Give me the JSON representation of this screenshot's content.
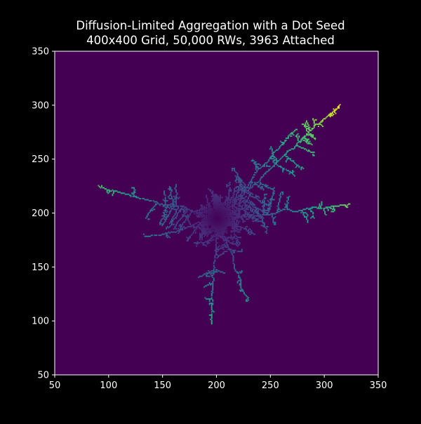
{
  "chart_data": {
    "type": "heatmap",
    "title_lines": [
      "Diffusion-Limited Aggregation with a Dot Seed",
      "400x400 Grid, 50,000 RWs, 3963 Attached"
    ],
    "xlabel": "",
    "ylabel": "",
    "xlim": [
      50,
      350
    ],
    "ylim": [
      50,
      350
    ],
    "xticks": [
      50,
      100,
      150,
      200,
      250,
      300,
      350
    ],
    "yticks": [
      50,
      100,
      150,
      200,
      250,
      300,
      350
    ],
    "grid": false,
    "colormap": "viridis",
    "background_color": "#440154",
    "figure_background": "#000000",
    "seed": [
      200,
      195
    ],
    "arms": [
      {
        "tip": [
          192,
          98
        ],
        "length_from_seed": 97
      },
      {
        "tip": [
          225,
          118
        ],
        "length_from_seed": 81
      },
      {
        "tip": [
          325,
          208
        ],
        "length_from_seed": 126
      },
      {
        "tip": [
          318,
          300
        ],
        "length_from_seed": 158
      },
      {
        "tip": [
          275,
          275
        ],
        "length_from_seed": 110
      },
      {
        "tip": [
          88,
          225
        ],
        "length_from_seed": 116
      },
      {
        "tip": [
          132,
          180
        ],
        "length_from_seed": 70
      }
    ]
  }
}
